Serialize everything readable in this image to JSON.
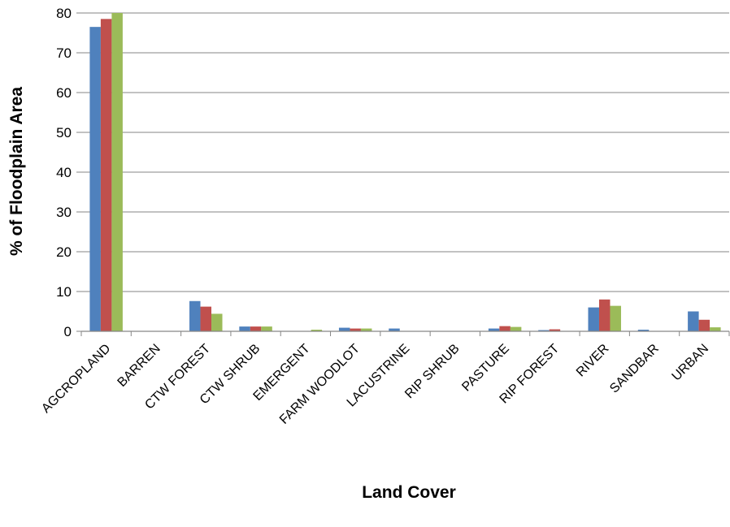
{
  "chart_data": {
    "type": "bar",
    "title": "",
    "xlabel": "Land Cover",
    "ylabel": "% of Floodplain Area",
    "ylim": [
      0,
      80
    ],
    "yticks": [
      0,
      10,
      20,
      30,
      40,
      50,
      60,
      70,
      80
    ],
    "grid": true,
    "legend": "none",
    "categories": [
      "AGCROPLAND",
      "BARREN",
      "CTW FOREST",
      "CTW SHRUB",
      "EMERGENT",
      "FARM WOODLOT",
      "LACUSTRINE",
      "RIP SHRUB",
      "PASTURE",
      "RIP FOREST",
      "RIVER",
      "SANDBAR",
      "URBAN"
    ],
    "series": [
      {
        "color": "#4F81BD",
        "values": [
          76.5,
          0,
          7.6,
          1.2,
          0,
          0.9,
          0.7,
          0,
          0.7,
          0.3,
          6.0,
          0.4,
          5.0
        ]
      },
      {
        "color": "#C0504D",
        "values": [
          78.5,
          0,
          6.2,
          1.2,
          0,
          0.7,
          0,
          0,
          1.3,
          0.5,
          8.0,
          0,
          2.9
        ]
      },
      {
        "color": "#9BBB59",
        "values": [
          80.0,
          0,
          4.4,
          1.2,
          0.4,
          0.7,
          0,
          0,
          1.1,
          0,
          6.4,
          0,
          1.0
        ]
      }
    ]
  }
}
